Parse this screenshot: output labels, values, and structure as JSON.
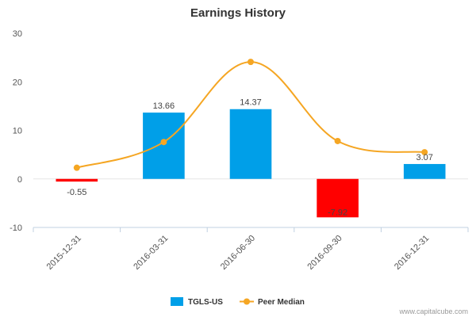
{
  "chart_data": {
    "type": "bar",
    "title": "Earnings History",
    "categories": [
      "2015-12-31",
      "2016-03-31",
      "2016-06-30",
      "2016-09-30",
      "2016-12-31"
    ],
    "series": [
      {
        "name": "TGLS-US",
        "kind": "bar",
        "values": [
          -0.55,
          13.66,
          14.37,
          -7.92,
          3.07
        ],
        "data_labels": [
          "-0.55",
          "13.66",
          "14.37",
          "-7.92",
          "3.07"
        ],
        "color_positive": "#009fe8",
        "color_negative": "#ff0000"
      },
      {
        "name": "Peer Median",
        "kind": "line",
        "values": [
          2.3,
          7.6,
          24.1,
          7.8,
          5.5
        ],
        "color": "#f5a623"
      }
    ],
    "yticks": [
      -10,
      0,
      10,
      20,
      30
    ],
    "ylim": [
      -10,
      30
    ],
    "xlabel": "",
    "ylabel": "",
    "grid": false,
    "legend": "bottom-center"
  },
  "credit": "www.capitalcube.com"
}
